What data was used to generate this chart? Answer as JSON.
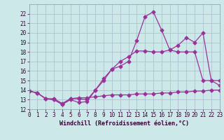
{
  "background_color": "#cce8e8",
  "grid_color": "#aabbcc",
  "line_color": "#993399",
  "xlabel": "Windchill (Refroidissement éolien,°C)",
  "ylim": [
    12,
    23
  ],
  "xlim": [
    0,
    23
  ],
  "yticks": [
    12,
    13,
    14,
    15,
    16,
    17,
    18,
    19,
    20,
    21,
    22
  ],
  "xticks": [
    0,
    1,
    2,
    3,
    4,
    5,
    6,
    7,
    8,
    9,
    10,
    11,
    12,
    13,
    14,
    15,
    16,
    17,
    18,
    19,
    20,
    21,
    22,
    23
  ],
  "series1_x": [
    0,
    1,
    2,
    3,
    4,
    5,
    6,
    7,
    8,
    9,
    10,
    11,
    12,
    13,
    14,
    15,
    16,
    17,
    18,
    19,
    20,
    21,
    22,
    23
  ],
  "series1_y": [
    13.9,
    13.7,
    13.1,
    13.1,
    12.6,
    13.1,
    13.2,
    13.2,
    13.3,
    13.4,
    13.5,
    13.5,
    13.5,
    13.6,
    13.6,
    13.6,
    13.7,
    13.7,
    13.8,
    13.8,
    13.9,
    13.9,
    14.0,
    14.0
  ],
  "series2_x": [
    0,
    1,
    2,
    3,
    4,
    5,
    6,
    7,
    8,
    9,
    10,
    11,
    12,
    13,
    14,
    15,
    16,
    17,
    18,
    19,
    20,
    21,
    22,
    23
  ],
  "series2_y": [
    13.9,
    13.7,
    13.1,
    13.0,
    12.5,
    13.0,
    12.7,
    12.8,
    14.0,
    15.2,
    16.2,
    17.0,
    17.5,
    18.1,
    18.1,
    18.0,
    18.0,
    18.2,
    18.0,
    18.0,
    18.0,
    15.0,
    15.0,
    15.0
  ],
  "series3_x": [
    0,
    1,
    2,
    3,
    4,
    5,
    6,
    7,
    8,
    9,
    10,
    11,
    12,
    13,
    14,
    15,
    16,
    17,
    18,
    19,
    20,
    21,
    22,
    23
  ],
  "series3_y": [
    13.9,
    13.7,
    13.1,
    13.0,
    12.5,
    13.1,
    13.1,
    13.0,
    14.0,
    15.0,
    16.2,
    16.5,
    17.0,
    19.2,
    21.7,
    22.2,
    20.3,
    18.2,
    18.7,
    19.5,
    19.0,
    20.0,
    15.0,
    14.5
  ],
  "tick_fontsize": 5.5,
  "xlabel_fontsize": 6.0,
  "marker_size": 2.5,
  "line_width": 0.9
}
